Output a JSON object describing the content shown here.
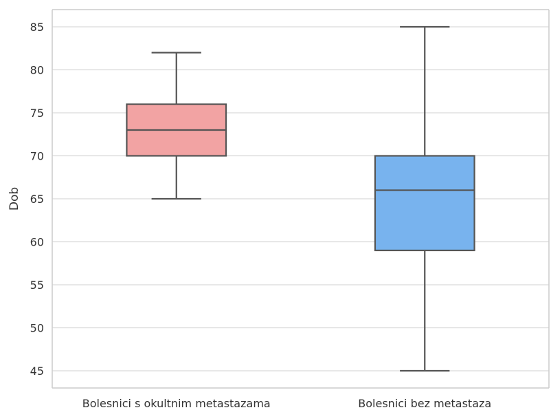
{
  "chart_data": {
    "type": "box",
    "categories": [
      "Bolesnici s okultnim metastazama",
      "Bolesnici bez metastaza"
    ],
    "boxes": [
      {
        "category": "Bolesnici s okultnim metastazama",
        "whisker_low": 65,
        "q1": 70,
        "median": 73,
        "q3": 76,
        "whisker_high": 82,
        "color": "#f2a3a3"
      },
      {
        "category": "Bolesnici bez metastaza",
        "whisker_low": 45,
        "q1": 59,
        "median": 66,
        "q3": 70,
        "whisker_high": 85,
        "color": "#78b3ee"
      }
    ],
    "ylabel": "Dob",
    "xlabel": "",
    "ylim": [
      43,
      87
    ],
    "yticks": [
      45,
      50,
      55,
      60,
      65,
      70,
      75,
      80,
      85
    ],
    "grid": "horizontal",
    "colors": {
      "line": "#555555",
      "grid": "#d9d9d9",
      "spine": "#cccccc"
    }
  }
}
